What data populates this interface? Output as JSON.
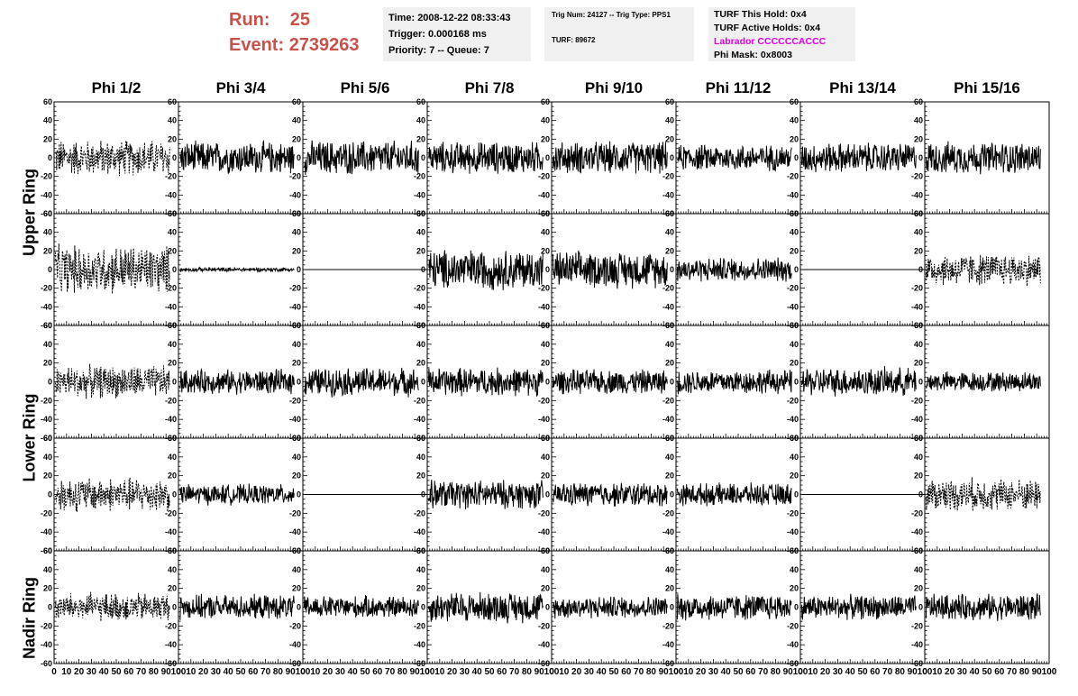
{
  "header": {
    "run_label": "Run:",
    "run_value": "25",
    "event_label": "Event:",
    "event_value": "2739263",
    "time": "Time: 2008-12-22 08:33:43",
    "trigger": "Trigger: 0.000168 ms",
    "priority": "Priority: 7 -- Queue: 7",
    "trig_num": "Trig Num: 24127 -- Trig Type: PPS1",
    "turf": "TURF: 89672",
    "turf_this_hold": "TURF This Hold: 0x4",
    "turf_active_holds": "TURF Active Holds: 0x4",
    "labrador": "Labrador CCCCCCACCC",
    "phi_mask": "Phi Mask: 0x8003"
  },
  "colors": {
    "run_text": "#c8524a",
    "labrador_text": "#e000e0",
    "info_box_bg": "#f0f0f0",
    "trace": "#000000"
  },
  "chart_data": {
    "type": "line",
    "grid": false,
    "columns": [
      "Phi 1/2",
      "Phi 3/4",
      "Phi 5/6",
      "Phi 7/8",
      "Phi 9/10",
      "Phi 11/12",
      "Phi 13/14",
      "Phi 15/16"
    ],
    "ring_labels": [
      "Upper Ring",
      "Lower Ring",
      "Nadir Ring"
    ],
    "xlim": [
      0,
      100
    ],
    "ylim": [
      -60,
      60
    ],
    "x_ticks": [
      "0",
      "10",
      "20",
      "30",
      "40",
      "50",
      "60",
      "70",
      "80",
      "90",
      "100"
    ],
    "y_ticks": [
      "-60",
      "-40",
      "-20",
      "0",
      "20",
      "40",
      "60"
    ],
    "panels": [
      [
        {
          "style": "dashed",
          "amplitude": 18
        },
        {
          "style": "solid",
          "amplitude": 16
        },
        {
          "style": "solid",
          "amplitude": 17
        },
        {
          "style": "solid",
          "amplitude": 16
        },
        {
          "style": "solid",
          "amplitude": 16
        },
        {
          "style": "solid",
          "amplitude": 13
        },
        {
          "style": "solid",
          "amplitude": 15
        },
        {
          "style": "solid",
          "amplitude": 16
        }
      ],
      [
        {
          "style": "dashed",
          "amplitude": 24
        },
        {
          "style": "solid",
          "amplitude": 2
        },
        {
          "style": "flat",
          "amplitude": 0
        },
        {
          "style": "solid",
          "amplitude": 20
        },
        {
          "style": "solid",
          "amplitude": 18
        },
        {
          "style": "solid",
          "amplitude": 12
        },
        {
          "style": "flat",
          "amplitude": 0
        },
        {
          "style": "dashed",
          "amplitude": 16
        }
      ],
      [
        {
          "style": "dashed",
          "amplitude": 16
        },
        {
          "style": "solid",
          "amplitude": 12
        },
        {
          "style": "solid",
          "amplitude": 14
        },
        {
          "style": "solid",
          "amplitude": 14
        },
        {
          "style": "solid",
          "amplitude": 12
        },
        {
          "style": "solid",
          "amplitude": 12
        },
        {
          "style": "solid",
          "amplitude": 14
        },
        {
          "style": "solid",
          "amplitude": 10
        }
      ],
      [
        {
          "style": "dashed",
          "amplitude": 17
        },
        {
          "style": "solid",
          "amplitude": 10
        },
        {
          "style": "flat",
          "amplitude": 0
        },
        {
          "style": "solid",
          "amplitude": 14
        },
        {
          "style": "solid",
          "amplitude": 12
        },
        {
          "style": "solid",
          "amplitude": 11
        },
        {
          "style": "flat",
          "amplitude": 0
        },
        {
          "style": "dashed",
          "amplitude": 16
        }
      ],
      [
        {
          "style": "dashed",
          "amplitude": 14
        },
        {
          "style": "solid",
          "amplitude": 12
        },
        {
          "style": "solid",
          "amplitude": 11
        },
        {
          "style": "solid",
          "amplitude": 15
        },
        {
          "style": "solid",
          "amplitude": 11
        },
        {
          "style": "solid",
          "amplitude": 13
        },
        {
          "style": "solid",
          "amplitude": 12
        },
        {
          "style": "solid",
          "amplitude": 13
        }
      ]
    ]
  }
}
